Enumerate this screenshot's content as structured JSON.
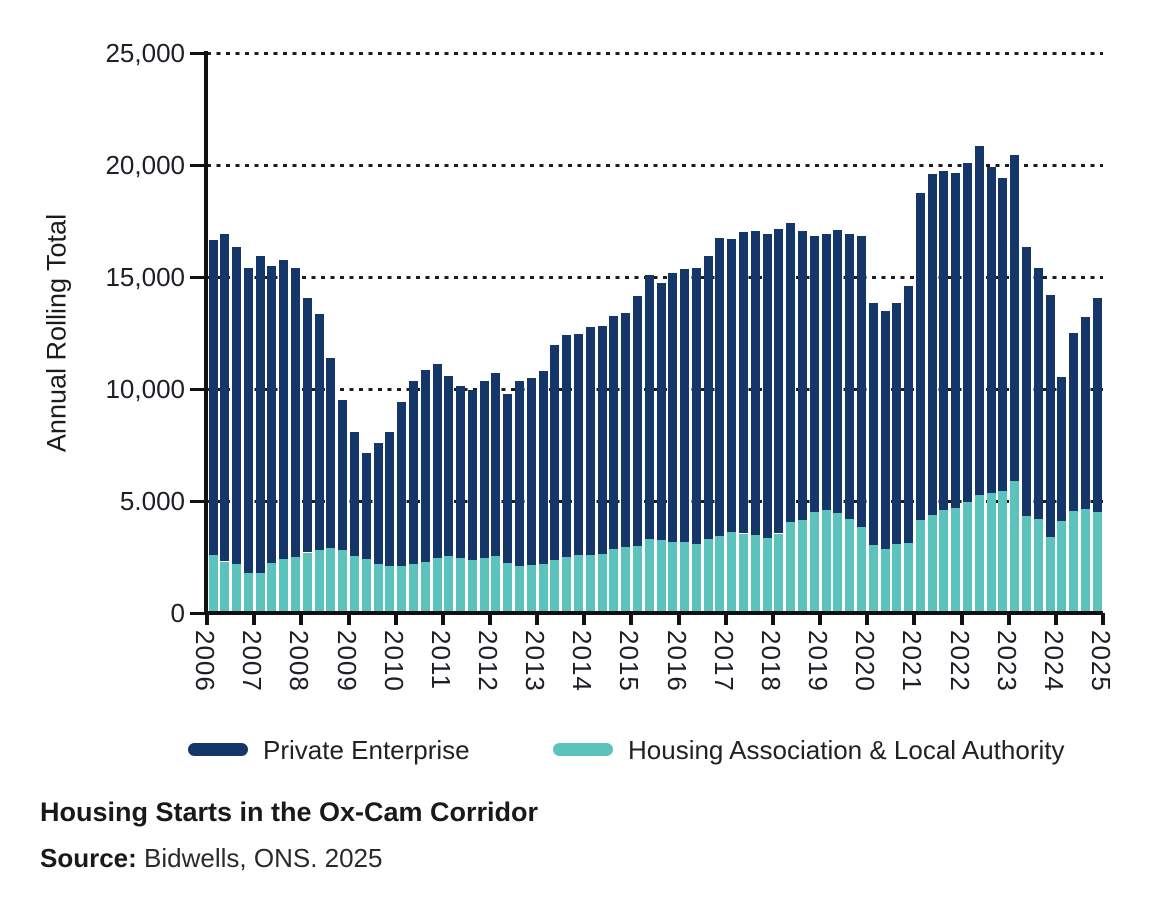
{
  "title": "Housing Starts in the Ox-Cam Corridor",
  "source": {
    "label": "Source:",
    "text": " Bidwells, ONS. 2025"
  },
  "chart": {
    "y_axis": {
      "title": "Annual Rolling Total",
      "max": 25000,
      "tick_values": [
        25000,
        20000,
        15000,
        10000,
        5000,
        0
      ],
      "tick_labels": [
        "25,000",
        "20,000",
        "15,000",
        "10,000",
        "5.000",
        "0"
      ]
    },
    "x_axis": {
      "tick_labels": [
        "2006",
        "2007",
        "2008",
        "2009",
        "2010",
        "2011",
        "2012",
        "2013",
        "2014",
        "2015",
        "2016",
        "2017",
        "2018",
        "2019",
        "2020",
        "2021",
        "2022",
        "2023",
        "2024",
        "2025"
      ]
    },
    "legend": [
      {
        "label": "Private Enterprise",
        "color": "#153669"
      },
      {
        "label": "Housing Association  & Local Authority",
        "color": "#5BC3BC"
      }
    ]
  },
  "chart_data": {
    "type": "bar",
    "stacked": true,
    "title": "Housing Starts in the Ox-Cam Corridor",
    "ylabel": "Annual Rolling Total",
    "xlabel": "",
    "ylim": [
      0,
      25000
    ],
    "grid": "horizontal dotted",
    "legend_position": "bottom",
    "frequency": "quarterly",
    "categories": [
      "2006 Q1",
      "2006 Q2",
      "2006 Q3",
      "2006 Q4",
      "2007 Q1",
      "2007 Q2",
      "2007 Q3",
      "2007 Q4",
      "2008 Q1",
      "2008 Q2",
      "2008 Q3",
      "2008 Q4",
      "2009 Q1",
      "2009 Q2",
      "2009 Q3",
      "2009 Q4",
      "2010 Q1",
      "2010 Q2",
      "2010 Q3",
      "2010 Q4",
      "2011 Q1",
      "2011 Q2",
      "2011 Q3",
      "2011 Q4",
      "2012 Q1",
      "2012 Q2",
      "2012 Q3",
      "2012 Q4",
      "2013 Q1",
      "2013 Q2",
      "2013 Q3",
      "2013 Q4",
      "2014 Q1",
      "2014 Q2",
      "2014 Q3",
      "2014 Q4",
      "2015 Q1",
      "2015 Q2",
      "2015 Q3",
      "2015 Q4",
      "2016 Q1",
      "2016 Q2",
      "2016 Q3",
      "2016 Q4",
      "2017 Q1",
      "2017 Q2",
      "2017 Q3",
      "2017 Q4",
      "2018 Q1",
      "2018 Q2",
      "2018 Q3",
      "2018 Q4",
      "2019 Q1",
      "2019 Q2",
      "2019 Q3",
      "2019 Q4",
      "2020 Q1",
      "2020 Q2",
      "2020 Q3",
      "2020 Q4",
      "2021 Q1",
      "2021 Q2",
      "2021 Q3",
      "2021 Q4",
      "2022 Q1",
      "2022 Q2",
      "2022 Q3",
      "2022 Q4",
      "2023 Q1",
      "2023 Q2",
      "2023 Q3",
      "2023 Q4",
      "2024 Q1",
      "2024 Q2",
      "2024 Q3",
      "2024 Q4"
    ],
    "series": [
      {
        "name": "Private Enterprise",
        "color": "#153669",
        "values": [
          14050,
          14600,
          14150,
          13600,
          14150,
          13250,
          13350,
          12900,
          11350,
          10550,
          8500,
          6700,
          5550,
          4750,
          5400,
          6000,
          7300,
          8150,
          8550,
          8650,
          8050,
          7700,
          7600,
          7900,
          8150,
          7550,
          8250,
          8350,
          8600,
          9600,
          9900,
          9850,
          10150,
          10150,
          10400,
          10450,
          11150,
          11800,
          11500,
          12050,
          12200,
          12300,
          12650,
          13300,
          13100,
          13450,
          13550,
          13550,
          13600,
          13350,
          12900,
          12350,
          12300,
          12650,
          12700,
          13000,
          10800,
          10650,
          10750,
          11450,
          14600,
          15200,
          15150,
          14950,
          15150,
          15600,
          14550,
          13950,
          14550,
          12000,
          11200,
          10800,
          6450,
          7950,
          8550,
          9550
        ]
      },
      {
        "name": "Housing Association & Local Authority",
        "color": "#5BC3BC",
        "values": [
          2600,
          2300,
          2200,
          1800,
          1800,
          2250,
          2400,
          2500,
          2700,
          2800,
          2900,
          2800,
          2550,
          2400,
          2200,
          2100,
          2100,
          2200,
          2300,
          2450,
          2550,
          2450,
          2350,
          2450,
          2550,
          2250,
          2100,
          2150,
          2200,
          2350,
          2500,
          2600,
          2600,
          2650,
          2850,
          2950,
          3000,
          3300,
          3250,
          3150,
          3150,
          3100,
          3300,
          3450,
          3600,
          3550,
          3500,
          3350,
          3550,
          4050,
          4150,
          4500,
          4600,
          4450,
          4200,
          3850,
          3050,
          2850,
          3100,
          3150,
          4150,
          4400,
          4600,
          4700,
          4950,
          5250,
          5350,
          5450,
          5900,
          4350,
          4200,
          3400,
          4100,
          4550,
          4650,
          4500
        ]
      }
    ]
  }
}
